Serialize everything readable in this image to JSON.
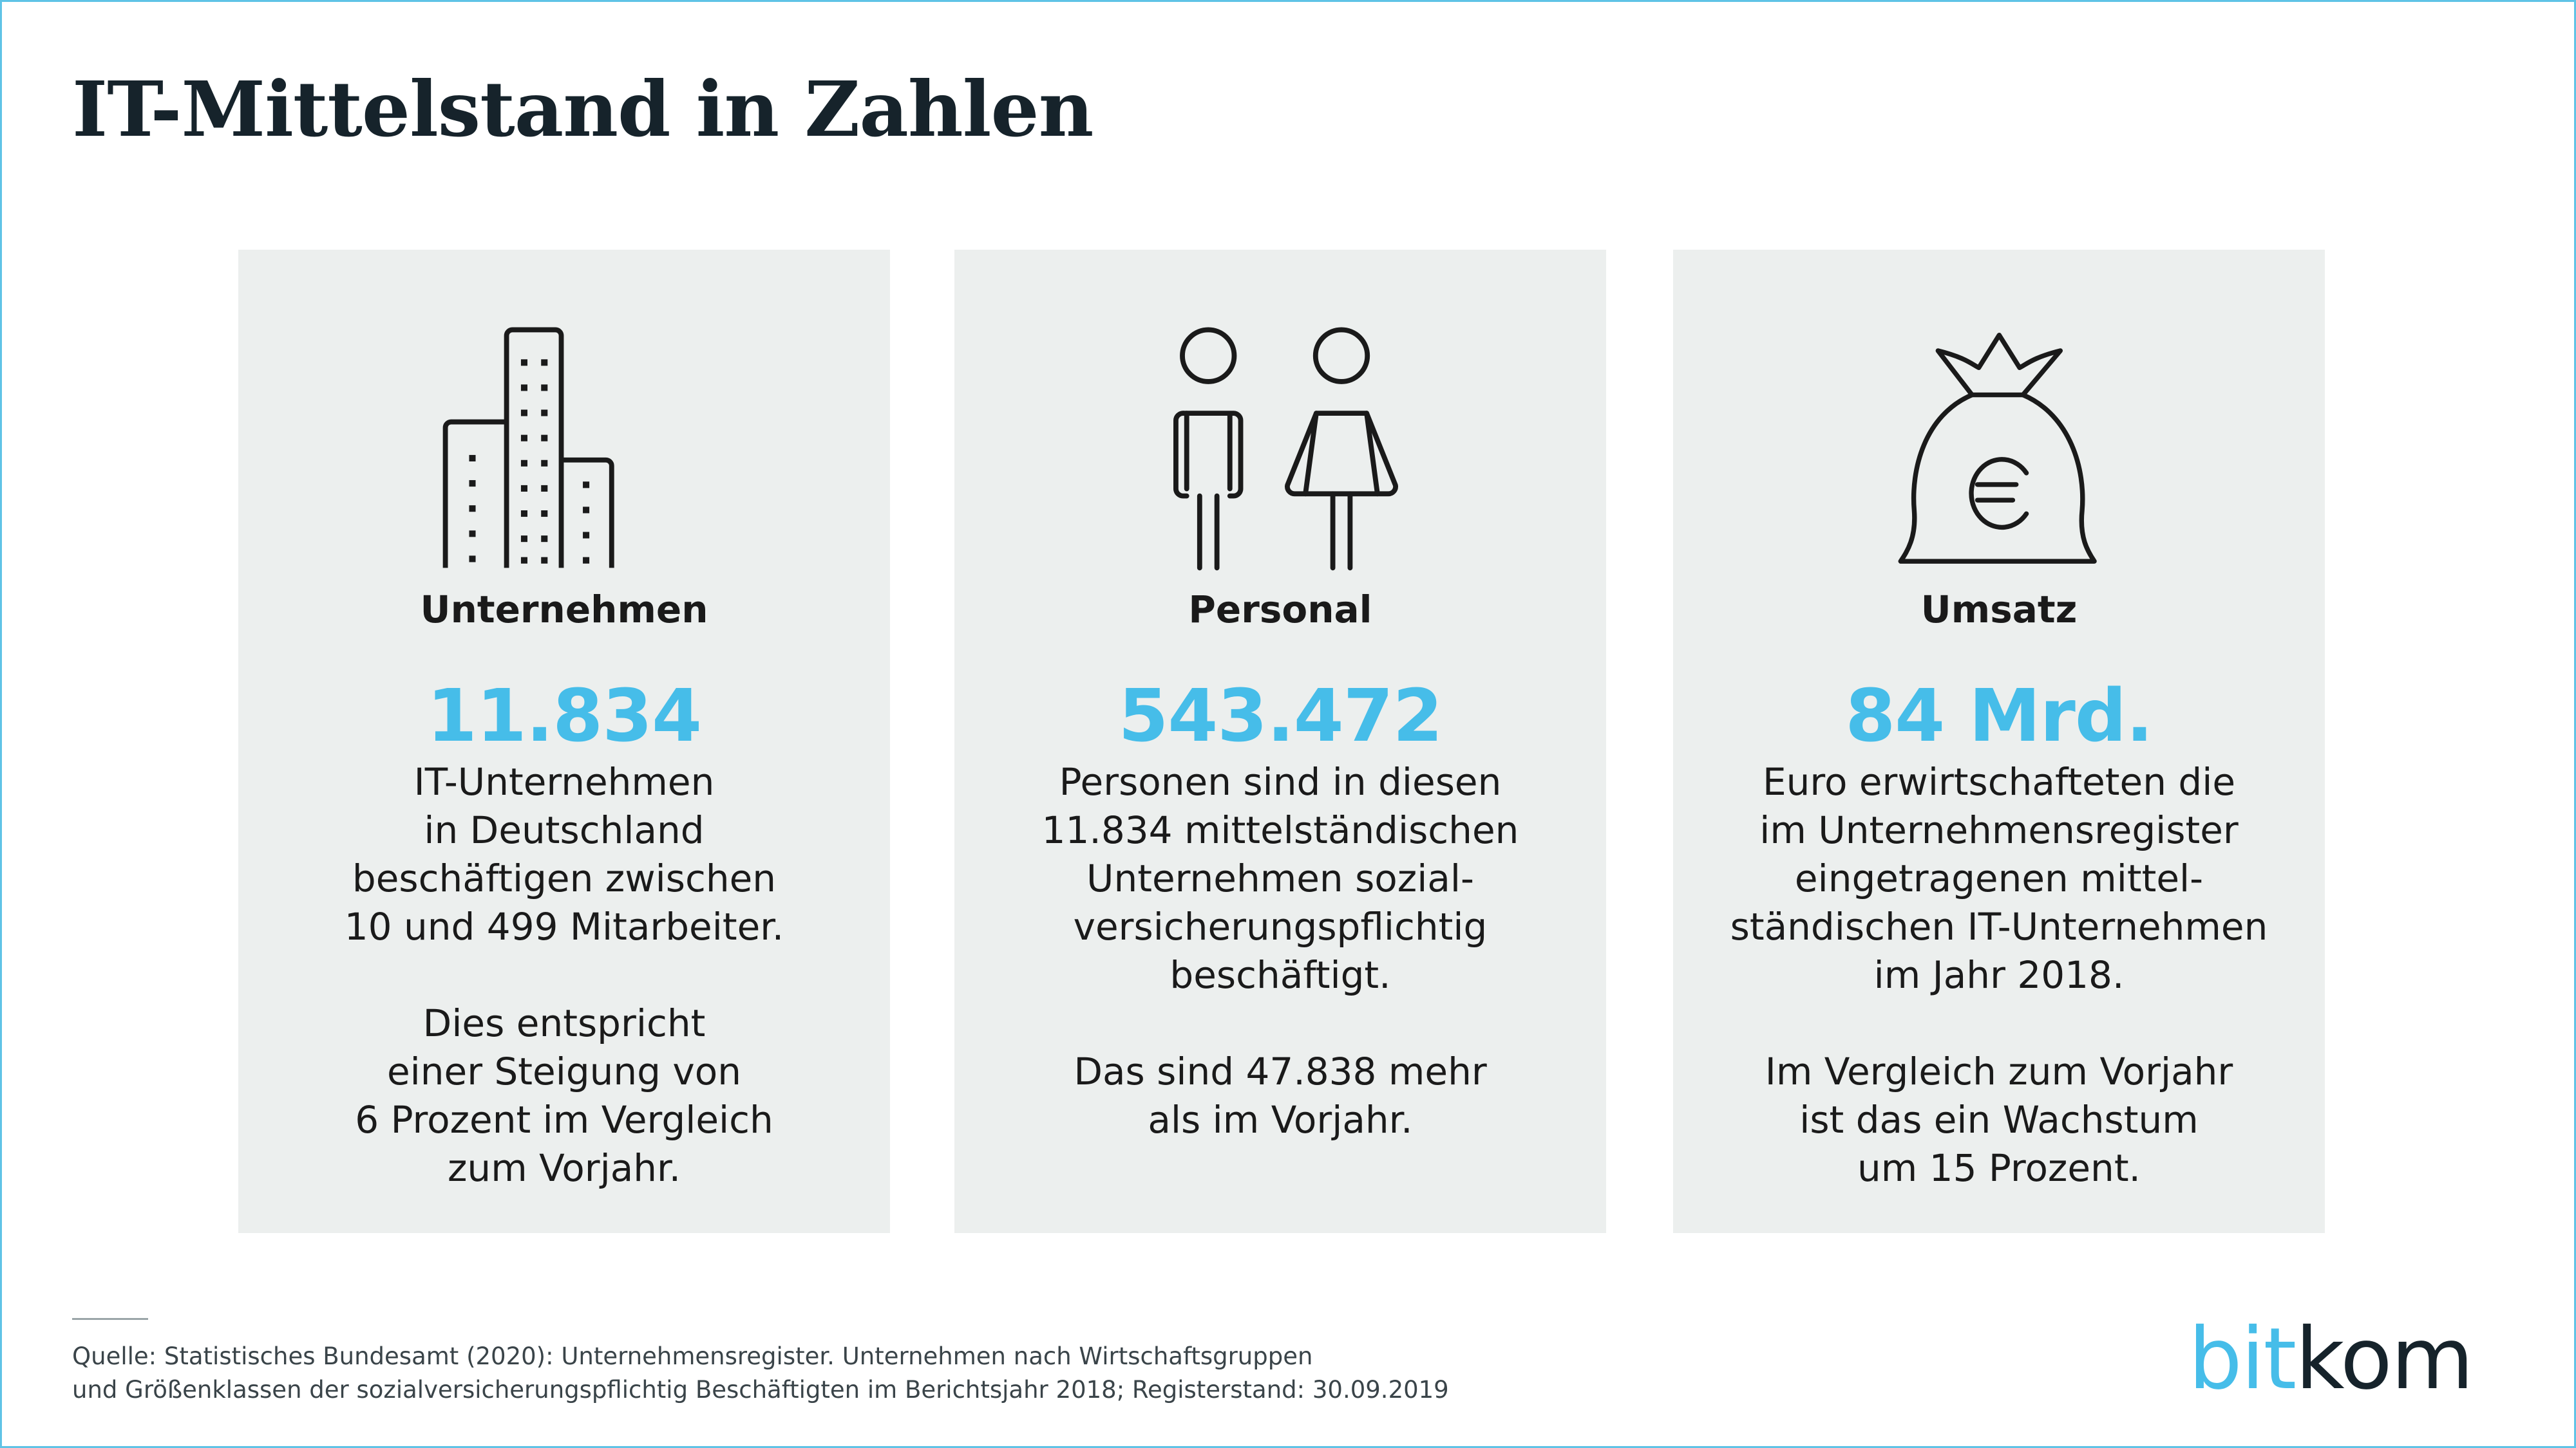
{
  "title": "IT-Mittelstand in Zahlen",
  "colors": {
    "accent": "#46bde9",
    "card_bg": "#ecefee",
    "title": "#16232b"
  },
  "cards": [
    {
      "icon": "buildings-icon",
      "label": "Unternehmen",
      "value": "11.834",
      "paragraphs": [
        "IT-Unternehmen\nin Deutschland\nbeschäftigen zwischen\n10 und 499 Mitarbeiter.",
        "Dies entspricht\neiner Steigung von\n6 Prozent im Vergleich\nzum Vorjahr."
      ]
    },
    {
      "icon": "people-icon",
      "label": "Personal",
      "value": "543.472",
      "paragraphs": [
        "Personen sind in diesen\n11.834 mittelständischen\nUnternehmen sozial-\nversicherungspflichtig\nbeschäftigt.",
        "Das sind 47.838 mehr\nals im Vorjahr."
      ]
    },
    {
      "icon": "money-bag-euro-icon",
      "label": "Umsatz",
      "value": "84 Mrd.",
      "paragraphs": [
        "Euro erwirtschafteten die\nim Unternehmensregister\neingetragenen mittel-\nständischen IT-Unternehmen\nim Jahr 2018.",
        "Im Vergleich zum Vorjahr\nist das ein Wachstum\num 15 Prozent."
      ]
    }
  ],
  "source": {
    "line1": "Quelle: Statistisches Bundesamt (2020): Unternehmensregister. Unternehmen nach Wirtschaftsgruppen",
    "line2": "und Größenklassen der sozialversicherungspflichtig Beschäftigten im Berichtsjahr 2018; Registerstand: 30.09.2019"
  },
  "logo": {
    "part1": "bit",
    "part2": "kom"
  }
}
